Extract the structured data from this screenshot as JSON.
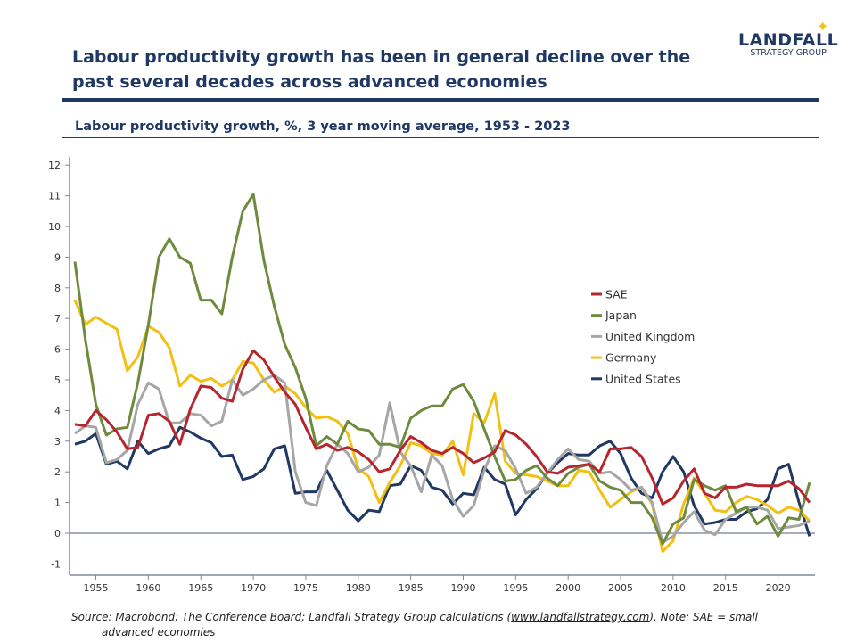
{
  "header": {
    "title": "Labour productivity growth has been in general decline over the past several decades across advanced economies",
    "logo": {
      "name": "LANDFALL",
      "tagline": "STRATEGY GROUP"
    }
  },
  "source": {
    "prefix": "Source: Macrobond; The Conference Board; Landfall Strategy Group calculations (",
    "link": "www.landfallstrategy.com",
    "suffix": "). Note: SAE = small",
    "line2": "advanced economies"
  },
  "chart_data": {
    "type": "line",
    "title": "Labour productivity growth, %, 3 year moving average, 1953 - 2023",
    "xlabel": "",
    "ylabel": "",
    "ylim": [
      -1,
      12
    ],
    "xlim": [
      1953,
      2023
    ],
    "yticks": [
      -1,
      0,
      1,
      2,
      3,
      4,
      5,
      6,
      7,
      8,
      9,
      10,
      11,
      12
    ],
    "xticks": [
      1955,
      1960,
      1965,
      1970,
      1975,
      1980,
      1985,
      1990,
      1995,
      2000,
      2005,
      2010,
      2015,
      2020
    ],
    "grid": false,
    "legend": "center-right",
    "x_start": 1953,
    "series": [
      {
        "name": "SAE",
        "color": "#B5262E",
        "values": [
          3.55,
          3.5,
          4.0,
          3.7,
          3.3,
          2.75,
          2.8,
          3.85,
          3.9,
          3.65,
          2.9,
          4.05,
          4.8,
          4.75,
          4.4,
          4.3,
          5.35,
          5.95,
          5.65,
          5.1,
          4.6,
          4.2,
          3.45,
          2.75,
          2.9,
          2.7,
          2.8,
          2.65,
          2.4,
          2.0,
          2.1,
          2.7,
          3.15,
          2.95,
          2.7,
          2.6,
          2.8,
          2.6,
          2.3,
          2.45,
          2.65,
          3.35,
          3.2,
          2.9,
          2.5,
          2.0,
          1.95,
          2.15,
          2.2,
          2.25,
          2.0,
          2.75,
          2.75,
          2.8,
          2.5,
          1.8,
          0.95,
          1.15,
          1.7,
          2.1,
          1.3,
          1.15,
          1.5,
          1.5,
          1.6,
          1.55,
          1.55,
          1.55,
          1.7,
          1.45,
          1.0
        ]
      },
      {
        "name": "Japan",
        "color": "#6E8B3D",
        "values": [
          8.85,
          6.3,
          4.2,
          3.2,
          3.4,
          3.45,
          4.9,
          6.8,
          9.0,
          9.6,
          9.0,
          8.8,
          7.6,
          7.6,
          7.15,
          9.0,
          10.5,
          11.05,
          8.9,
          7.4,
          6.15,
          5.4,
          4.4,
          2.85,
          3.15,
          2.9,
          3.65,
          3.4,
          3.35,
          2.9,
          2.9,
          2.8,
          3.75,
          4.0,
          4.15,
          4.15,
          4.7,
          4.85,
          4.3,
          3.4,
          2.5,
          1.7,
          1.75,
          2.05,
          2.2,
          1.8,
          1.55,
          1.95,
          2.15,
          2.25,
          1.7,
          1.5,
          1.4,
          1.0,
          1.0,
          0.5,
          -0.35,
          0.3,
          0.5,
          1.75,
          1.55,
          1.4,
          1.55,
          0.7,
          0.85,
          0.3,
          0.55,
          -0.1,
          0.5,
          0.45,
          1.65
        ]
      },
      {
        "name": "United Kingdom",
        "color": "#A6A6A6",
        "values": [
          3.25,
          3.5,
          3.45,
          2.3,
          2.4,
          2.7,
          4.2,
          4.9,
          4.7,
          3.6,
          3.6,
          3.9,
          3.85,
          3.5,
          3.65,
          5.0,
          4.5,
          4.7,
          5.0,
          5.15,
          4.9,
          2.0,
          1.0,
          0.9,
          2.2,
          2.9,
          2.6,
          2.0,
          2.15,
          2.55,
          4.25,
          2.65,
          2.2,
          1.35,
          2.55,
          2.2,
          1.1,
          0.55,
          0.9,
          2.05,
          2.85,
          2.7,
          2.1,
          1.3,
          1.5,
          1.95,
          2.4,
          2.75,
          2.4,
          2.35,
          1.95,
          2.0,
          1.75,
          1.4,
          1.5,
          1.0,
          -0.3,
          -0.1,
          0.35,
          0.7,
          0.1,
          -0.05,
          0.45,
          0.65,
          0.85,
          0.85,
          0.75,
          0.15,
          0.2,
          0.25,
          0.4
        ]
      },
      {
        "name": "Germany",
        "color": "#F2C012",
        "values": [
          7.6,
          6.8,
          7.05,
          6.85,
          6.65,
          5.3,
          5.75,
          6.75,
          6.55,
          6.05,
          4.8,
          5.15,
          4.95,
          5.05,
          4.8,
          5.0,
          5.6,
          5.55,
          5.0,
          4.6,
          4.8,
          4.55,
          4.1,
          3.75,
          3.8,
          3.65,
          3.25,
          2.1,
          1.85,
          1.0,
          1.65,
          2.2,
          2.95,
          2.85,
          2.6,
          2.55,
          3.0,
          1.9,
          3.9,
          3.6,
          4.55,
          2.35,
          1.95,
          1.9,
          1.85,
          1.7,
          1.55,
          1.55,
          2.05,
          2.0,
          1.4,
          0.85,
          1.1,
          1.35,
          1.5,
          0.95,
          -0.6,
          -0.25,
          0.95,
          1.8,
          1.3,
          0.75,
          0.7,
          1.0,
          1.2,
          1.1,
          0.9,
          0.65,
          0.85,
          0.75,
          0.4
        ]
      },
      {
        "name": "United States",
        "color": "#1F3864",
        "values": [
          2.9,
          3.0,
          3.25,
          2.25,
          2.35,
          2.1,
          3.0,
          2.6,
          2.75,
          2.85,
          3.45,
          3.3,
          3.1,
          2.95,
          2.5,
          2.55,
          1.75,
          1.85,
          2.1,
          2.75,
          2.85,
          1.3,
          1.35,
          1.35,
          2.05,
          1.4,
          0.75,
          0.4,
          0.75,
          0.7,
          1.55,
          1.6,
          2.2,
          2.05,
          1.5,
          1.4,
          0.95,
          1.3,
          1.25,
          2.15,
          1.75,
          1.6,
          0.6,
          1.1,
          1.45,
          1.95,
          2.3,
          2.6,
          2.55,
          2.55,
          2.85,
          3.0,
          2.6,
          1.8,
          1.3,
          1.15,
          2.0,
          2.5,
          2.0,
          0.9,
          0.3,
          0.35,
          0.45,
          0.45,
          0.7,
          0.8,
          1.1,
          2.1,
          2.25,
          1.0,
          -0.1
        ]
      }
    ]
  }
}
